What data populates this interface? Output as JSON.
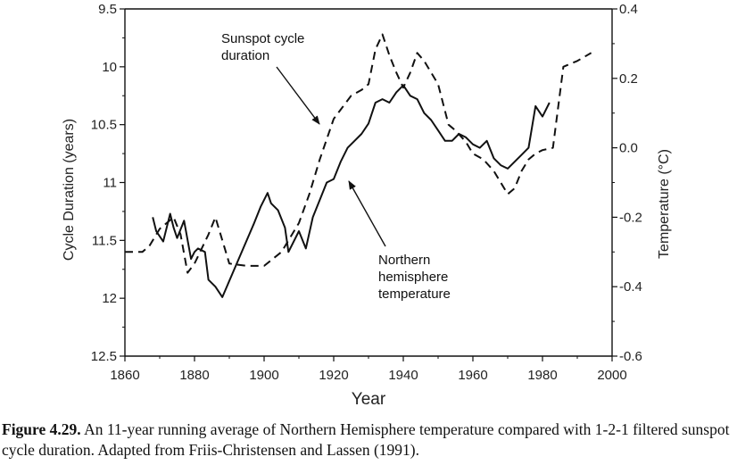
{
  "caption": {
    "label": "Figure 4.29.",
    "text": "An 11-year running average of Northern Hemisphere temperature compared with 1-2-1 filtered sunspot cycle duration. Adapted from Friis-Christensen and Lassen (1991)."
  },
  "chart_data": {
    "type": "line",
    "title": "",
    "xlabel": "Year",
    "ylabel_left": "Cycle Duration (years)",
    "ylabel_right": "Temperature (°C)",
    "xlim": [
      1860,
      2000
    ],
    "ylim_left": [
      9.5,
      12.5
    ],
    "ylim_left_inverted": true,
    "ylim_right": [
      -0.6,
      0.4
    ],
    "x_ticks": [
      "1860",
      "1880",
      "1900",
      "1920",
      "1940",
      "1960",
      "1980",
      "2000"
    ],
    "y_left_ticks": [
      "9.5",
      "10",
      "10.5",
      "11",
      "11.5",
      "12",
      "12.5"
    ],
    "y_right_ticks": [
      "0.4",
      "0.2",
      "0.0",
      "-0.2",
      "-0.4",
      "-0.6"
    ],
    "grid": false,
    "annotations": [
      {
        "lines": [
          "Sunspot cycle",
          "duration"
        ],
        "series": "sunspot"
      },
      {
        "lines": [
          "Northern",
          "hemisphere",
          "temperature"
        ],
        "series": "temperature"
      }
    ],
    "series": [
      {
        "id": "sunspot",
        "axis": "left",
        "style": "dashed",
        "points": [
          [
            1860,
            11.6
          ],
          [
            1865,
            11.6
          ],
          [
            1867,
            11.55
          ],
          [
            1870,
            11.4
          ],
          [
            1872,
            11.35
          ],
          [
            1874,
            11.3
          ],
          [
            1876,
            11.45
          ],
          [
            1878,
            11.78
          ],
          [
            1880,
            11.7
          ],
          [
            1884,
            11.45
          ],
          [
            1886,
            11.3
          ],
          [
            1888,
            11.5
          ],
          [
            1890,
            11.7
          ],
          [
            1895,
            11.72
          ],
          [
            1900,
            11.72
          ],
          [
            1905,
            11.6
          ],
          [
            1910,
            11.35
          ],
          [
            1913,
            11.1
          ],
          [
            1916,
            10.8
          ],
          [
            1920,
            10.45
          ],
          [
            1925,
            10.25
          ],
          [
            1928,
            10.2
          ],
          [
            1930,
            10.15
          ],
          [
            1932,
            9.85
          ],
          [
            1934,
            9.72
          ],
          [
            1936,
            9.9
          ],
          [
            1938,
            10.05
          ],
          [
            1940,
            10.18
          ],
          [
            1942,
            10.05
          ],
          [
            1944,
            9.88
          ],
          [
            1946,
            9.95
          ],
          [
            1948,
            10.05
          ],
          [
            1950,
            10.15
          ],
          [
            1953,
            10.5
          ],
          [
            1955,
            10.55
          ],
          [
            1958,
            10.65
          ],
          [
            1960,
            10.75
          ],
          [
            1963,
            10.8
          ],
          [
            1966,
            10.9
          ],
          [
            1968,
            11.0
          ],
          [
            1970,
            11.1
          ],
          [
            1972,
            11.05
          ],
          [
            1974,
            10.9
          ],
          [
            1976,
            10.8
          ],
          [
            1978,
            10.75
          ],
          [
            1980,
            10.72
          ],
          [
            1983,
            10.7
          ],
          [
            1986,
            10.0
          ],
          [
            1990,
            9.95
          ],
          [
            1994,
            9.88
          ]
        ]
      },
      {
        "id": "temperature",
        "axis": "right",
        "style": "solid",
        "points": [
          [
            1868,
            -0.2
          ],
          [
            1869,
            -0.24
          ],
          [
            1871,
            -0.27
          ],
          [
            1873,
            -0.19
          ],
          [
            1874,
            -0.23
          ],
          [
            1875,
            -0.26
          ],
          [
            1877,
            -0.21
          ],
          [
            1879,
            -0.32
          ],
          [
            1880,
            -0.3
          ],
          [
            1881,
            -0.29
          ],
          [
            1883,
            -0.3
          ],
          [
            1884,
            -0.38
          ],
          [
            1886,
            -0.4
          ],
          [
            1888,
            -0.43
          ],
          [
            1891,
            -0.36
          ],
          [
            1894,
            -0.29
          ],
          [
            1897,
            -0.22
          ],
          [
            1899,
            -0.17
          ],
          [
            1901,
            -0.13
          ],
          [
            1902,
            -0.16
          ],
          [
            1904,
            -0.18
          ],
          [
            1906,
            -0.23
          ],
          [
            1907,
            -0.3
          ],
          [
            1910,
            -0.24
          ],
          [
            1912,
            -0.29
          ],
          [
            1914,
            -0.2
          ],
          [
            1916,
            -0.15
          ],
          [
            1918,
            -0.1
          ],
          [
            1920,
            -0.09
          ],
          [
            1922,
            -0.04
          ],
          [
            1924,
            0.0
          ],
          [
            1926,
            0.02
          ],
          [
            1928,
            0.04
          ],
          [
            1930,
            0.07
          ],
          [
            1932,
            0.13
          ],
          [
            1934,
            0.14
          ],
          [
            1936,
            0.13
          ],
          [
            1938,
            0.16
          ],
          [
            1940,
            0.18
          ],
          [
            1942,
            0.15
          ],
          [
            1944,
            0.14
          ],
          [
            1946,
            0.1
          ],
          [
            1948,
            0.08
          ],
          [
            1950,
            0.05
          ],
          [
            1952,
            0.02
          ],
          [
            1954,
            0.02
          ],
          [
            1956,
            0.04
          ],
          [
            1958,
            0.03
          ],
          [
            1960,
            0.01
          ],
          [
            1962,
            0.0
          ],
          [
            1964,
            0.02
          ],
          [
            1966,
            -0.03
          ],
          [
            1968,
            -0.05
          ],
          [
            1970,
            -0.06
          ],
          [
            1972,
            -0.04
          ],
          [
            1974,
            -0.02
          ],
          [
            1976,
            0.0
          ],
          [
            1978,
            0.12
          ],
          [
            1980,
            0.09
          ],
          [
            1982,
            0.13
          ]
        ]
      }
    ]
  }
}
